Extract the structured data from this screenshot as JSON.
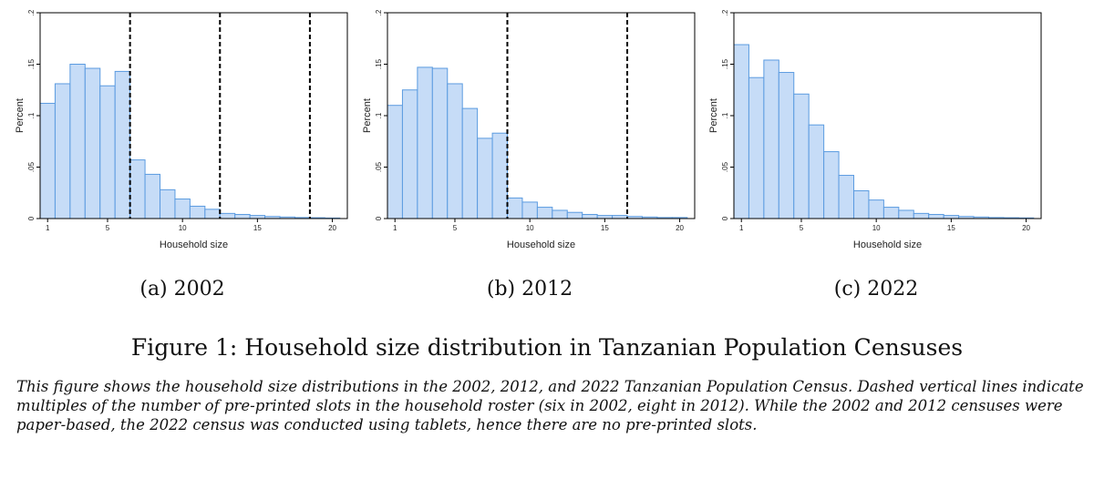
{
  "chart_data": [
    {
      "type": "bar",
      "subcaption": "(a) 2002",
      "xlabel": "Household size",
      "ylabel": "Percent",
      "xlim": [
        0.5,
        21
      ],
      "ylim": [
        0,
        0.2
      ],
      "xticks": [
        {
          "value": 1,
          "label": "1"
        },
        {
          "value": 5,
          "label": "5"
        },
        {
          "value": 10,
          "label": "10"
        },
        {
          "value": 15,
          "label": "15"
        },
        {
          "value": 20,
          "label": "20"
        }
      ],
      "yticks": [
        {
          "value": 0,
          "label": "0"
        },
        {
          "value": 0.05,
          "label": ".05"
        },
        {
          "value": 0.1,
          "label": ".1"
        },
        {
          "value": 0.15,
          "label": ".15"
        },
        {
          "value": 0.2,
          "label": ".2"
        }
      ],
      "x": [
        1,
        2,
        3,
        4,
        5,
        6,
        7,
        8,
        9,
        10,
        11,
        12,
        13,
        14,
        15,
        16,
        17,
        18,
        19,
        20
      ],
      "values": [
        0.112,
        0.131,
        0.15,
        0.146,
        0.129,
        0.143,
        0.057,
        0.043,
        0.028,
        0.019,
        0.012,
        0.009,
        0.005,
        0.004,
        0.003,
        0.002,
        0.0015,
        0.001,
        0.0008,
        0.0005
      ],
      "vlines": [
        6.5,
        12.5,
        18.5
      ]
    },
    {
      "type": "bar",
      "subcaption": "(b) 2012",
      "xlabel": "Household size",
      "ylabel": "Percent",
      "xlim": [
        0.5,
        21
      ],
      "ylim": [
        0,
        0.2
      ],
      "xticks": [
        {
          "value": 1,
          "label": "1"
        },
        {
          "value": 5,
          "label": "5"
        },
        {
          "value": 10,
          "label": "10"
        },
        {
          "value": 15,
          "label": "15"
        },
        {
          "value": 20,
          "label": "20"
        }
      ],
      "yticks": [
        {
          "value": 0,
          "label": "0"
        },
        {
          "value": 0.05,
          "label": ".05"
        },
        {
          "value": 0.1,
          "label": ".1"
        },
        {
          "value": 0.15,
          "label": ".15"
        },
        {
          "value": 0.2,
          "label": ".2"
        }
      ],
      "x": [
        1,
        2,
        3,
        4,
        5,
        6,
        7,
        8,
        9,
        10,
        11,
        12,
        13,
        14,
        15,
        16,
        17,
        18,
        19,
        20
      ],
      "values": [
        0.11,
        0.125,
        0.147,
        0.146,
        0.131,
        0.107,
        0.078,
        0.083,
        0.02,
        0.016,
        0.011,
        0.008,
        0.006,
        0.004,
        0.003,
        0.003,
        0.002,
        0.0015,
        0.001,
        0.001
      ],
      "vlines": [
        8.5,
        16.5
      ]
    },
    {
      "type": "bar",
      "subcaption": "(c) 2022",
      "xlabel": "Household size",
      "ylabel": "Percent",
      "xlim": [
        0.5,
        21
      ],
      "ylim": [
        0,
        0.2
      ],
      "xticks": [
        {
          "value": 1,
          "label": "1"
        },
        {
          "value": 5,
          "label": "5"
        },
        {
          "value": 10,
          "label": "10"
        },
        {
          "value": 15,
          "label": "15"
        },
        {
          "value": 20,
          "label": "20"
        }
      ],
      "yticks": [
        {
          "value": 0,
          "label": "0"
        },
        {
          "value": 0.05,
          "label": ".05"
        },
        {
          "value": 0.1,
          "label": ".1"
        },
        {
          "value": 0.15,
          "label": ".15"
        },
        {
          "value": 0.2,
          "label": ".2"
        }
      ],
      "x": [
        1,
        2,
        3,
        4,
        5,
        6,
        7,
        8,
        9,
        10,
        11,
        12,
        13,
        14,
        15,
        16,
        17,
        18,
        19,
        20
      ],
      "values": [
        0.169,
        0.137,
        0.154,
        0.142,
        0.121,
        0.091,
        0.065,
        0.042,
        0.027,
        0.018,
        0.011,
        0.008,
        0.005,
        0.004,
        0.003,
        0.002,
        0.0015,
        0.001,
        0.0008,
        0.0006
      ],
      "vlines": []
    }
  ],
  "colors": {
    "bar_fill": "#c6dcf7",
    "bar_stroke": "#5b9be0",
    "axis": "#000000"
  },
  "figure": {
    "title": "Figure 1: Household size distribution in Tanzanian Population Censuses",
    "note": "This figure shows the household size distributions in the 2002, 2012, and 2022 Tanzanian Population Census. Dashed vertical lines indicate multiples of the number of pre-printed slots in the household roster (six in 2002, eight in 2012). While the 2002 and 2012 censuses were paper-based, the 2022 census was conducted using tablets, hence there are no pre-printed slots."
  }
}
